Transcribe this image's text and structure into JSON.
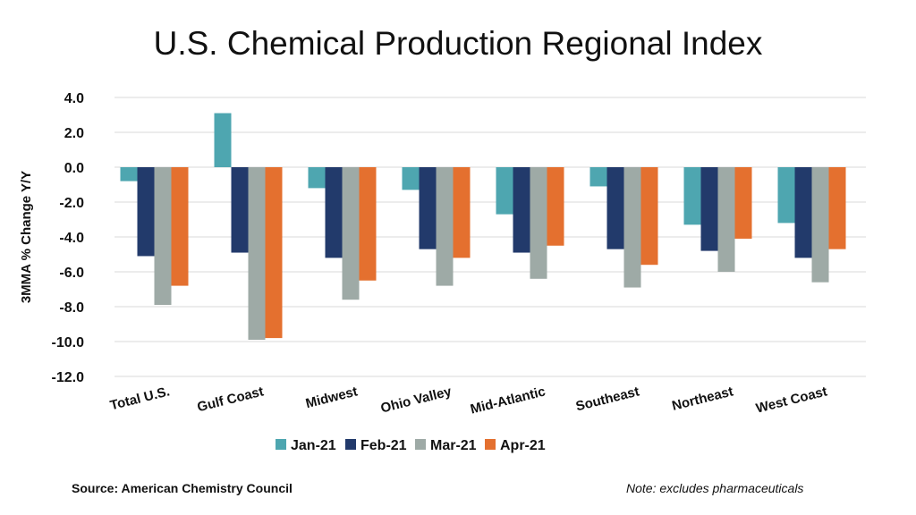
{
  "chart_data": {
    "type": "bar",
    "title": "U.S. Chemical Production Regional Index",
    "xlabel": "",
    "ylabel": "3MMA % Change Y/Y",
    "ylim": [
      -12,
      4
    ],
    "yticks": [
      "4.0",
      "2.0",
      "0.0",
      "-2.0",
      "-4.0",
      "-6.0",
      "-8.0",
      "-10.0",
      "-12.0"
    ],
    "grid": true,
    "legend": "bottom",
    "categories": [
      "Total U.S.",
      "Gulf Coast",
      "Midwest",
      "Ohio Valley",
      "Mid-Atlantic",
      "Southeast",
      "Northeast",
      "West Coast"
    ],
    "series": [
      {
        "name": "Jan-21",
        "color": "#4ea6b0",
        "values": [
          -0.8,
          3.1,
          -1.2,
          -1.3,
          -2.7,
          -1.1,
          -3.3,
          -3.2
        ]
      },
      {
        "name": "Feb-21",
        "color": "#223a6b",
        "values": [
          -5.1,
          -4.9,
          -5.2,
          -4.7,
          -4.9,
          -4.7,
          -4.8,
          -5.2
        ]
      },
      {
        "name": "Mar-21",
        "color": "#9eaaa6",
        "values": [
          -7.9,
          -9.9,
          -7.6,
          -6.8,
          -6.4,
          -6.9,
          -6.0,
          -6.6
        ]
      },
      {
        "name": "Apr-21",
        "color": "#e4702f",
        "values": [
          -6.8,
          -9.8,
          -6.5,
          -5.2,
          -4.5,
          -5.6,
          -4.1,
          -4.7
        ]
      }
    ]
  },
  "footer": {
    "source": "Source: American Chemistry Council",
    "note": "Note: excludes pharmaceuticals"
  }
}
